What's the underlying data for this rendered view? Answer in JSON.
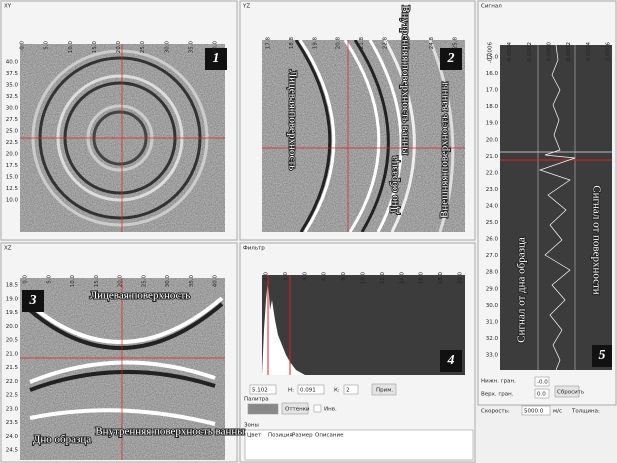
{
  "panels": {
    "xy": {
      "title": "XY",
      "number": "1",
      "top_ticks": [
        "0.0",
        "5.0",
        "10.0",
        "15.0",
        "20.0",
        "25.0",
        "30.0",
        "35.0",
        "40.0"
      ],
      "left_ticks": [
        "40.0",
        "37.5",
        "35.0",
        "32.5",
        "30.0",
        "27.5",
        "25.0",
        "22.5",
        "20.0",
        "17.5",
        "15.0",
        "12.5",
        "10.0"
      ]
    },
    "yz": {
      "title": "YZ",
      "number": "2",
      "top_ticks": [
        "17.8",
        "18.8",
        "19.8",
        "20.8",
        "21.8",
        "22.8",
        "23.8",
        "24.8",
        "25.8"
      ],
      "labels": [
        "Лицевая поверхность",
        "Внутренняя поверхность ванны",
        "Дно образца",
        "Внешняя поверхность ванны"
      ]
    },
    "xz": {
      "title": "XZ",
      "number": "3",
      "top_ticks": [
        "0.0",
        "5.0",
        "10.0",
        "15.0",
        "20.0",
        "25.0",
        "30.0",
        "35.0",
        "40.0"
      ],
      "left_ticks": [
        "18.5",
        "19.0",
        "19.5",
        "20.0",
        "20.5",
        "21.0",
        "21.5",
        "22.0",
        "22.5",
        "23.0",
        "23.5",
        "24.0",
        "24.5"
      ],
      "labels": [
        "Лицевая поверхность",
        "Дно образца",
        "Внутренняя поверхность ванны"
      ]
    },
    "filter": {
      "title": "Фильтр",
      "number": "4",
      "top_ticks": [
        "0.0",
        "2.0",
        "4.0",
        "6.0",
        "8.0",
        "10.0",
        "12.0",
        "14.0",
        "16.0",
        "18.0",
        "20.0"
      ],
      "field1": "5.102",
      "label_h": "Н:",
      "field2": "0.091",
      "label_k": "К:",
      "field3": "2",
      "apply": "Прим.",
      "palette_title": "Палитра",
      "palette": "Оттенки",
      "invert": "Инв."
    },
    "signal": {
      "title": "Сигнал",
      "number": "5",
      "top_ticks": [
        "-0.0006",
        "-0.0004",
        "-0.0002",
        "0.0000",
        "0.0002",
        "0.0004",
        "0.0006"
      ],
      "left_ticks": [
        "15.0",
        "16.0",
        "17.0",
        "18.0",
        "19.0",
        "20.0",
        "21.0",
        "22.0",
        "23.0",
        "24.0",
        "25.0",
        "26.0",
        "27.0",
        "28.0",
        "29.0",
        "30.0",
        "31.0",
        "32.0",
        "33.0"
      ],
      "labels": [
        "Сигнал от поверхности",
        "Сигнал от дна образца"
      ],
      "low_label": "Нижн. гран.",
      "low_value": "-0.0",
      "high_label": "Верх. гран.",
      "high_value": "0.0",
      "reset": "Сбросить",
      "speed_label": "Скорость:",
      "speed_value": "5000.0",
      "speed_unit": "м/с",
      "thickness_label": "Толщина:"
    },
    "zones": {
      "title": "Зоны",
      "columns": [
        "Цвет",
        "Позиция",
        "Размер",
        "Описание"
      ]
    }
  }
}
